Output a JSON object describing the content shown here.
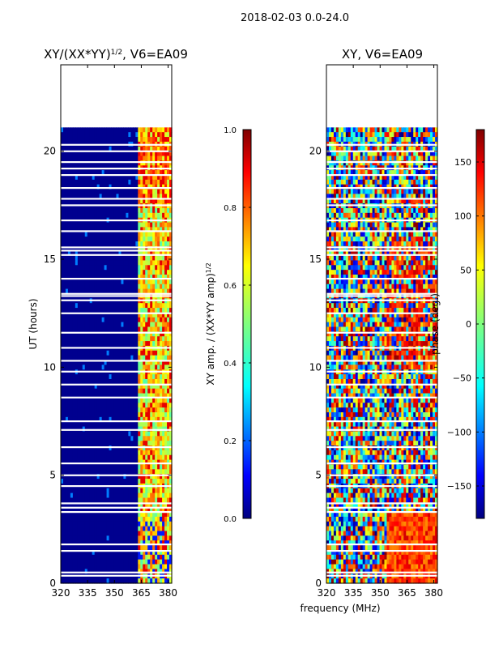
{
  "figure_title": "2018-02-03 0.0-24.0",
  "xlabel_shared": "frequency (MHz)",
  "colors": {
    "jet": [
      "#00007f",
      "#0000ff",
      "#007fff",
      "#00ffff",
      "#7fff7f",
      "#ffff00",
      "#ff7f00",
      "#ff0000",
      "#7f0000"
    ],
    "background": "#00008f",
    "gap": "#ffffff"
  },
  "chart_data": [
    {
      "type": "heatmap",
      "title_base": "XY/(XX*YY)",
      "title_power": "1/2",
      "title_suffix": ", V6=EA09",
      "xlabel": "",
      "ylabel": "UT (hours)",
      "xlim": [
        320,
        382
      ],
      "ylim": [
        0,
        24
      ],
      "xticks": [
        320,
        335,
        350,
        365,
        380
      ],
      "yticks": [
        0,
        5,
        10,
        15,
        20
      ],
      "data_extent_hours": [
        0,
        21.1
      ],
      "colorbar": {
        "label": "XY amp. / (XX*YY amp)",
        "label_power": "1/2",
        "range": [
          0.0,
          1.0
        ],
        "ticks": [
          "0.0",
          "0.2",
          "0.4",
          "0.6",
          "0.8",
          "1.0"
        ]
      }
    },
    {
      "type": "heatmap",
      "title": "XY, V6=EA09",
      "xlabel": "frequency (MHz)",
      "ylabel": "",
      "xlim": [
        320,
        382
      ],
      "ylim": [
        0,
        24
      ],
      "xticks": [
        320,
        335,
        350,
        365,
        380
      ],
      "yticks": [
        0,
        5,
        10,
        15,
        20
      ],
      "data_extent_hours": [
        0,
        21.1
      ],
      "colorbar": {
        "label": "phase (deg.)",
        "range": [
          -180,
          180
        ],
        "ticks": [
          "150",
          "100",
          "50",
          "0",
          "−50",
          "−100",
          "−150"
        ],
        "tick_values": [
          150,
          100,
          50,
          0,
          -50,
          -100,
          -150
        ]
      }
    }
  ],
  "gaps_hours": [
    0.35,
    0.5,
    1.5,
    1.8,
    3.3,
    3.5,
    3.7,
    4.5,
    5.0,
    5.55,
    6.3,
    7.1,
    7.5,
    8.6,
    9.2,
    9.8,
    10.3,
    10.9,
    11.6,
    12.5,
    13.1,
    13.3,
    13.4,
    14.1,
    15.2,
    15.4,
    15.55,
    16.3,
    16.8,
    17.5,
    17.8,
    18.3,
    18.9,
    19.2,
    19.5,
    20.0,
    20.3
  ]
}
